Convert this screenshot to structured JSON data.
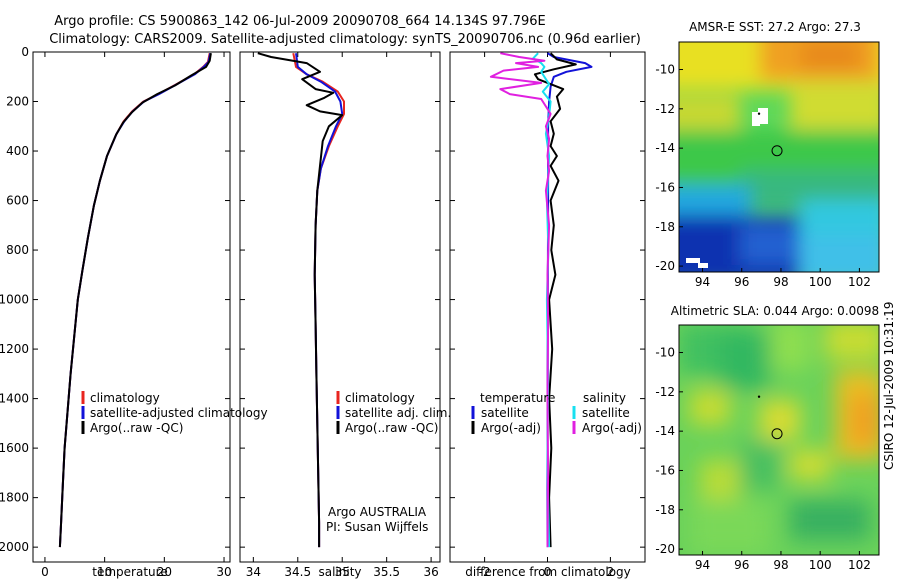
{
  "title": {
    "line1": "Argo profile: CS 5900863_142 06-Jul-2009 20090708_664 14.134S 97.796E",
    "line2": "Climatology: CARS2009. Satellite-adjusted climatology: synTS_20090706.nc (0.96d earlier)"
  },
  "side_stamp": "CSIRO 12-Jul-2009 10:31:19",
  "colors": {
    "red": "#e8251f",
    "blue": "#1212d8",
    "black": "#000000",
    "cyan": "#18e0f0",
    "magenta": "#e020e0"
  },
  "chart_data": [
    {
      "id": "temperature",
      "type": "line",
      "xlabel": "temperature",
      "ylabel": "",
      "xlim": [
        -2,
        31
      ],
      "ylim": [
        2060,
        0
      ],
      "xticks": [
        0,
        10,
        20,
        30
      ],
      "yticks": [
        0,
        200,
        400,
        600,
        800,
        1000,
        1200,
        1400,
        1600,
        1800,
        2000
      ],
      "legend": {
        "position": "lower-middle",
        "entries": [
          {
            "label": "climatology",
            "color": "red"
          },
          {
            "label": "satellite-adjusted climatology",
            "color": "blue"
          },
          {
            "label": "Argo(..raw -QC)",
            "color": "black"
          }
        ]
      },
      "series": [
        {
          "name": "climatology",
          "color": "red",
          "points": [
            [
              27.6,
              5
            ],
            [
              27.3,
              40
            ],
            [
              26.5,
              60
            ],
            [
              25,
              90
            ],
            [
              22,
              130
            ],
            [
              19,
              170
            ],
            [
              16.5,
              200
            ],
            [
              14.6,
              240
            ],
            [
              13.2,
              280
            ],
            [
              12,
              330
            ],
            [
              10.4,
              420
            ],
            [
              9.2,
              520
            ],
            [
              8.2,
              620
            ],
            [
              7.2,
              750
            ],
            [
              6.3,
              880
            ],
            [
              5.5,
              1000
            ],
            [
              4.9,
              1150
            ],
            [
              4.3,
              1300
            ],
            [
              3.8,
              1450
            ],
            [
              3.3,
              1600
            ],
            [
              3,
              1750
            ],
            [
              2.7,
              1900
            ],
            [
              2.5,
              2000
            ]
          ]
        },
        {
          "name": "satellite-adjusted climatology",
          "color": "blue",
          "points": [
            [
              27.7,
              5
            ],
            [
              27.4,
              40
            ],
            [
              26.6,
              60
            ],
            [
              25.1,
              90
            ],
            [
              22.1,
              130
            ],
            [
              19.1,
              170
            ],
            [
              16.6,
              200
            ],
            [
              14.7,
              240
            ],
            [
              13.3,
              280
            ],
            [
              12,
              330
            ],
            [
              10.4,
              420
            ],
            [
              9.2,
              520
            ],
            [
              8.2,
              620
            ],
            [
              7.2,
              750
            ],
            [
              6.3,
              880
            ],
            [
              5.5,
              1000
            ],
            [
              4.9,
              1150
            ],
            [
              4.3,
              1300
            ],
            [
              3.8,
              1450
            ],
            [
              3.3,
              1600
            ],
            [
              3,
              1750
            ],
            [
              2.7,
              1900
            ],
            [
              2.5,
              2000
            ]
          ]
        },
        {
          "name": "Argo(..raw -QC)",
          "color": "black",
          "points": [
            [
              27.8,
              5
            ],
            [
              27.6,
              35
            ],
            [
              27,
              60
            ],
            [
              24.5,
              95
            ],
            [
              21.8,
              135
            ],
            [
              18.8,
              170
            ],
            [
              16.3,
              205
            ],
            [
              14.5,
              245
            ],
            [
              13.1,
              285
            ],
            [
              11.9,
              335
            ],
            [
              10.4,
              420
            ],
            [
              9.2,
              520
            ],
            [
              8.2,
              620
            ],
            [
              7.2,
              750
            ],
            [
              6.3,
              880
            ],
            [
              5.5,
              1000
            ],
            [
              4.9,
              1150
            ],
            [
              4.3,
              1300
            ],
            [
              3.8,
              1450
            ],
            [
              3.3,
              1600
            ],
            [
              3,
              1750
            ],
            [
              2.7,
              1900
            ],
            [
              2.5,
              2000
            ]
          ]
        }
      ]
    },
    {
      "id": "salinity",
      "type": "line",
      "xlabel": "salinity",
      "xlim": [
        33.85,
        36.1
      ],
      "ylim": [
        2060,
        0
      ],
      "xticks": [
        34,
        34.5,
        35,
        35.5,
        36
      ],
      "legend": {
        "position": "lower-middle",
        "entries": [
          {
            "label": "climatology",
            "color": "red"
          },
          {
            "label": "satellite adj. clim.",
            "color": "blue"
          },
          {
            "label": "Argo(..raw -QC)",
            "color": "black"
          }
        ]
      },
      "annotations": [
        "Argo AUSTRALIA",
        "PI: Susan Wijffels"
      ],
      "series": [
        {
          "name": "climatology",
          "color": "red",
          "points": [
            [
              34.45,
              5
            ],
            [
              34.48,
              60
            ],
            [
              34.6,
              90
            ],
            [
              34.78,
              120
            ],
            [
              34.95,
              160
            ],
            [
              35.02,
              200
            ],
            [
              35.02,
              250
            ],
            [
              34.95,
              300
            ],
            [
              34.85,
              380
            ],
            [
              34.76,
              470
            ],
            [
              34.72,
              560
            ],
            [
              34.7,
              700
            ],
            [
              34.69,
              900
            ],
            [
              34.7,
              1100
            ],
            [
              34.71,
              1300
            ],
            [
              34.72,
              1500
            ],
            [
              34.73,
              1700
            ],
            [
              34.74,
              1900
            ],
            [
              34.74,
              2000
            ]
          ]
        },
        {
          "name": "satellite adj. clim.",
          "color": "blue",
          "points": [
            [
              34.48,
              5
            ],
            [
              34.5,
              60
            ],
            [
              34.6,
              90
            ],
            [
              34.76,
              120
            ],
            [
              34.92,
              160
            ],
            [
              34.98,
              200
            ],
            [
              35,
              250
            ],
            [
              34.93,
              300
            ],
            [
              34.84,
              380
            ],
            [
              34.76,
              470
            ],
            [
              34.72,
              560
            ],
            [
              34.7,
              700
            ],
            [
              34.69,
              900
            ],
            [
              34.7,
              1100
            ],
            [
              34.71,
              1300
            ],
            [
              34.72,
              1500
            ],
            [
              34.73,
              1700
            ],
            [
              34.74,
              1900
            ],
            [
              34.74,
              2000
            ]
          ]
        },
        {
          "name": "Argo(..raw -QC)",
          "color": "black",
          "points": [
            [
              34.05,
              5
            ],
            [
              34.2,
              20
            ],
            [
              34.6,
              45
            ],
            [
              34.75,
              80
            ],
            [
              34.55,
              110
            ],
            [
              34.7,
              150
            ],
            [
              34.9,
              165
            ],
            [
              34.8,
              185
            ],
            [
              34.6,
              215
            ],
            [
              34.75,
              240
            ],
            [
              35,
              255
            ],
            [
              34.85,
              300
            ],
            [
              34.78,
              360
            ],
            [
              34.75,
              460
            ],
            [
              34.72,
              560
            ],
            [
              34.7,
              700
            ],
            [
              34.69,
              900
            ],
            [
              34.7,
              1100
            ],
            [
              34.71,
              1300
            ],
            [
              34.72,
              1500
            ],
            [
              34.73,
              1700
            ],
            [
              34.74,
              1900
            ],
            [
              34.74,
              2000
            ]
          ]
        }
      ]
    },
    {
      "id": "difference",
      "type": "line",
      "xlabel": "difference from climatology",
      "xlim": [
        -3.1,
        3.1
      ],
      "ylim": [
        2060,
        0
      ],
      "xticks": [
        -2,
        0,
        2
      ],
      "legend": {
        "position": "lower-middle",
        "col1_header": "temperature",
        "col2_header": "salinity",
        "entries": [
          {
            "label": "satellite",
            "color": "blue"
          },
          {
            "label": "Argo(-adj)",
            "color": "black"
          },
          {
            "label": "satellite",
            "color": "cyan"
          },
          {
            "label": "Argo(-adj)",
            "color": "magenta"
          }
        ]
      },
      "series": [
        {
          "name": "temperature satellite",
          "color": "blue",
          "points": [
            [
              0,
              5
            ],
            [
              0.2,
              20
            ],
            [
              1.2,
              45
            ],
            [
              1.4,
              60
            ],
            [
              0.6,
              80
            ],
            [
              0.2,
              100
            ],
            [
              0.1,
              140
            ],
            [
              0.05,
              200
            ],
            [
              0.02,
              300
            ],
            [
              0.02,
              600
            ],
            [
              0.01,
              1000
            ],
            [
              0,
              1500
            ],
            [
              0,
              2000
            ]
          ]
        },
        {
          "name": "temperature Argo(-adj)",
          "color": "black",
          "points": [
            [
              0.1,
              5
            ],
            [
              0.3,
              30
            ],
            [
              0.9,
              50
            ],
            [
              0.2,
              70
            ],
            [
              -0.4,
              90
            ],
            [
              -0.3,
              110
            ],
            [
              0.5,
              150
            ],
            [
              0.3,
              180
            ],
            [
              0.4,
              230
            ],
            [
              0.1,
              280
            ],
            [
              0.2,
              330
            ],
            [
              0.1,
              380
            ],
            [
              0.3,
              420
            ],
            [
              0.1,
              460
            ],
            [
              0.35,
              520
            ],
            [
              0.1,
              600
            ],
            [
              0.2,
              700
            ],
            [
              0.12,
              800
            ],
            [
              0.25,
              900
            ],
            [
              0.05,
              1000
            ],
            [
              0.15,
              1200
            ],
            [
              0.05,
              1400
            ],
            [
              0.12,
              1600
            ],
            [
              0.05,
              1800
            ],
            [
              0.1,
              2000
            ]
          ]
        },
        {
          "name": "salinity satellite",
          "color": "cyan",
          "points": [
            [
              -0.3,
              5
            ],
            [
              -0.45,
              25
            ],
            [
              -0.2,
              45
            ],
            [
              -0.1,
              60
            ],
            [
              -0.2,
              80
            ],
            [
              -0.1,
              100
            ],
            [
              0.05,
              130
            ],
            [
              -0.15,
              160
            ],
            [
              0.1,
              200
            ],
            [
              0.05,
              260
            ],
            [
              -0.05,
              330
            ],
            [
              0.05,
              420
            ],
            [
              -0.02,
              600
            ],
            [
              0.03,
              800
            ],
            [
              -0.02,
              1000
            ],
            [
              0.02,
              1300
            ],
            [
              0,
              1600
            ],
            [
              0.02,
              1800
            ],
            [
              0.05,
              2000
            ]
          ]
        },
        {
          "name": "salinity Argo(-adj)",
          "color": "magenta",
          "points": [
            [
              -1.5,
              5
            ],
            [
              -0.9,
              20
            ],
            [
              -0.1,
              35
            ],
            [
              -1,
              45
            ],
            [
              -0.3,
              60
            ],
            [
              -1.4,
              75
            ],
            [
              -1.8,
              100
            ],
            [
              -0.2,
              125
            ],
            [
              -1.5,
              150
            ],
            [
              -1.2,
              170
            ],
            [
              -0.2,
              190
            ],
            [
              0.1,
              250
            ],
            [
              -0.05,
              300
            ],
            [
              0.05,
              350
            ],
            [
              0,
              420
            ],
            [
              0.05,
              480
            ],
            [
              -0.05,
              560
            ],
            [
              0.05,
              700
            ],
            [
              0,
              900
            ],
            [
              0.02,
              1100
            ],
            [
              0,
              1400
            ],
            [
              0.02,
              1700
            ],
            [
              0,
              2000
            ]
          ]
        }
      ]
    },
    {
      "id": "sst-map",
      "type": "heatmap",
      "title": "AMSR-E SST: 27.2 Argo: 27.3",
      "xlim": [
        92.8,
        103
      ],
      "ylim": [
        -20.3,
        -8.6
      ],
      "xticks": [
        94,
        96,
        98,
        100,
        102
      ],
      "yticks": [
        -10,
        -12,
        -14,
        -16,
        -18,
        -20
      ],
      "profile_position": [
        97.8,
        -14.13
      ]
    },
    {
      "id": "sla-map",
      "type": "heatmap",
      "title": "Altimetric SLA: 0.044 Argo: 0.0098",
      "xlim": [
        92.8,
        103
      ],
      "ylim": [
        -20.3,
        -8.6
      ],
      "xticks": [
        94,
        96,
        98,
        100,
        102
      ],
      "yticks": [
        -10,
        -12,
        -14,
        -16,
        -18,
        -20
      ],
      "profile_position": [
        97.8,
        -14.13
      ]
    }
  ]
}
